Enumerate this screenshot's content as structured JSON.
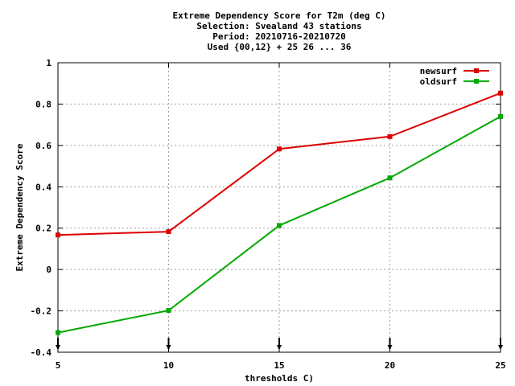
{
  "chart_data": {
    "type": "line",
    "title_lines": [
      "Extreme Dependency Score  for T2m (deg C)",
      "Selection: Svealand     43 stations",
      "Period: 20210716-20210720",
      "Used {00,12} + 25 26 ... 36"
    ],
    "xlabel": "thresholds C)",
    "ylabel": "Extreme Dependency Score",
    "x": [
      5,
      10,
      15,
      20,
      25
    ],
    "x_ticks": [
      "5",
      "10",
      "15",
      "20",
      "25"
    ],
    "xlim": [
      5,
      25
    ],
    "ylim": [
      -0.4,
      1.0
    ],
    "y_ticks": [
      "-0.4",
      "-0.2",
      "0",
      "0.2",
      "0.4",
      "0.6",
      "0.8",
      "1"
    ],
    "grid": true,
    "legend_position": "top-right",
    "series": [
      {
        "name": "newsurf",
        "color": "#dd0000",
        "values": [
          0.167,
          0.183,
          0.583,
          0.643,
          0.853
        ]
      },
      {
        "name": "oldsurf",
        "color": "#00aa00",
        "values": [
          -0.305,
          -0.198,
          0.213,
          0.443,
          0.74
        ]
      }
    ]
  }
}
